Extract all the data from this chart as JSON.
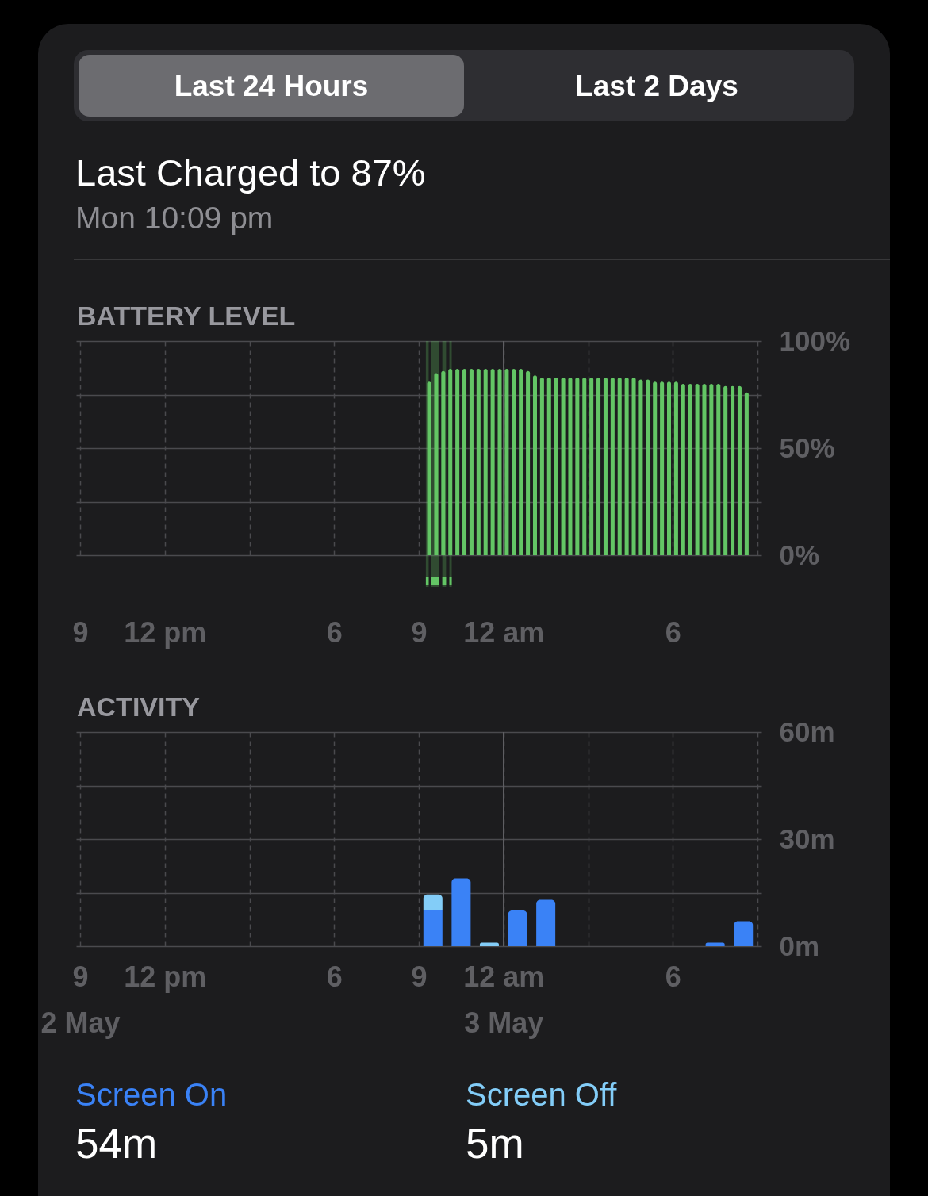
{
  "chart_data": [
    {
      "type": "other",
      "title": "Last Charged to 87%",
      "subtitle": "Mon 10:09 pm",
      "annotations": [
        "Last 24 Hours",
        "Last 2 Days"
      ]
    },
    {
      "type": "bar",
      "title": "BATTERY LEVEL",
      "x": [
        "--05-02T21:22",
        "--05-02T21:37",
        "--05-02T21:52",
        "--05-02T22:07",
        "--05-02T22:22",
        "--05-02T22:37",
        "--05-02T22:52",
        "--05-02T23:07",
        "--05-02T23:22",
        "--05-02T23:37",
        "--05-02T23:52",
        "--05-03T00:07",
        "--05-03T00:22",
        "--05-03T00:37",
        "--05-03T00:52",
        "--05-03T01:07",
        "--05-03T01:22",
        "--05-03T01:37",
        "--05-03T01:52",
        "--05-03T02:07",
        "--05-03T02:22",
        "--05-03T02:37",
        "--05-03T02:52",
        "--05-03T03:07",
        "--05-03T03:22",
        "--05-03T03:37",
        "--05-03T03:52",
        "--05-03T04:07",
        "--05-03T04:22",
        "--05-03T04:37",
        "--05-03T04:52",
        "--05-03T05:07",
        "--05-03T05:22",
        "--05-03T05:37",
        "--05-03T05:52",
        "--05-03T06:07",
        "--05-03T06:22",
        "--05-03T06:37",
        "--05-03T06:52",
        "--05-03T07:07",
        "--05-03T07:22",
        "--05-03T07:37",
        "--05-03T07:52",
        "--05-03T08:07",
        "--05-03T08:22",
        "--05-03T08:37"
      ],
      "values": [
        81,
        85,
        86,
        87,
        87,
        87,
        87,
        87,
        87,
        87,
        87,
        87,
        87,
        87,
        86,
        84,
        83,
        83,
        83,
        83,
        83,
        83,
        83,
        83,
        83,
        83,
        83,
        83,
        83,
        83,
        82,
        82,
        81,
        81,
        81,
        81,
        80,
        80,
        80,
        80,
        80,
        80,
        79,
        79,
        79,
        76
      ],
      "color": "#63c565",
      "xlim": [
        "--05-02T09:00",
        "--05-03T09:00"
      ],
      "xticks": [
        {
          "value": "--05-02T09:00",
          "label": "9"
        },
        {
          "value": "--05-02T12:00",
          "label": "12 pm"
        },
        {
          "value": "--05-02T15:00",
          "label": null
        },
        {
          "value": "--05-02T18:00",
          "label": "6"
        },
        {
          "value": "--05-02T21:00",
          "label": "9"
        },
        {
          "value": "--05-03T00:00",
          "label": "12 am"
        },
        {
          "value": "--05-03T03:00",
          "label": null
        },
        {
          "value": "--05-03T06:00",
          "label": "6"
        },
        {
          "value": "--05-03T09:00",
          "label": null
        }
      ],
      "ylim": [
        0,
        100
      ],
      "yticks": [
        {
          "value": 0,
          "label": "0%"
        },
        {
          "value": 25,
          "label": null
        },
        {
          "value": 50,
          "label": "50%"
        },
        {
          "value": 75,
          "label": null
        },
        {
          "value": 100,
          "label": "100%"
        }
      ],
      "grid": true,
      "ref_lines": [
        {
          "axis": "x",
          "value": "--05-03T00:00",
          "color": "#5e5e62"
        }
      ],
      "bands": [
        {
          "axis": "x",
          "from": "--05-02T21:15",
          "to": "--05-02T21:21",
          "color": "#63c565"
        },
        {
          "axis": "x",
          "from": "--05-02T21:26",
          "to": "--05-02T21:43",
          "color": "#63c565"
        },
        {
          "axis": "x",
          "from": "--05-02T21:50",
          "to": "--05-02T21:58",
          "color": "#63c565"
        },
        {
          "axis": "x",
          "from": "--05-02T22:05",
          "to": "--05-02T22:10",
          "color": "#63c565"
        }
      ]
    },
    {
      "type": "bar",
      "title": "ACTIVITY",
      "stacked": true,
      "x": [
        "--05-02T21:30",
        "--05-02T22:30",
        "--05-02T23:30",
        "--05-03T00:30",
        "--05-03T01:30",
        "--05-03T07:30",
        "--05-03T08:30"
      ],
      "series": [
        {
          "name": "Screen On",
          "color": "#3a82f6",
          "values": [
            10,
            19,
            null,
            10,
            13,
            1,
            7
          ]
        },
        {
          "name": "Screen Off",
          "color": "#83cdf8",
          "values": [
            4.5,
            null,
            1,
            null,
            null,
            null,
            null
          ]
        }
      ],
      "xlim": [
        "--05-02T09:00",
        "--05-03T09:00"
      ],
      "xticks": [
        {
          "value": "--05-02T09:00",
          "label": "9\n2 May"
        },
        {
          "value": "--05-02T12:00",
          "label": "12 pm"
        },
        {
          "value": "--05-02T15:00",
          "label": null
        },
        {
          "value": "--05-02T18:00",
          "label": "6"
        },
        {
          "value": "--05-02T21:00",
          "label": "9"
        },
        {
          "value": "--05-03T00:00",
          "label": "12 am\n3 May"
        },
        {
          "value": "--05-03T03:00",
          "label": null
        },
        {
          "value": "--05-03T06:00",
          "label": "6"
        },
        {
          "value": "--05-03T09:00",
          "label": null
        }
      ],
      "ylim": [
        0,
        60
      ],
      "yticks": [
        {
          "value": 0,
          "label": "0m"
        },
        {
          "value": 15,
          "label": null
        },
        {
          "value": 30,
          "label": "30m"
        },
        {
          "value": 45,
          "label": null
        },
        {
          "value": 60,
          "label": "60m"
        }
      ],
      "grid": true,
      "ref_lines": [
        {
          "axis": "x",
          "value": "--05-03T00:00",
          "color": "#5e5e62"
        }
      ],
      "legend": "bottom",
      "annotations": [
        "54m",
        "5m"
      ]
    }
  ]
}
